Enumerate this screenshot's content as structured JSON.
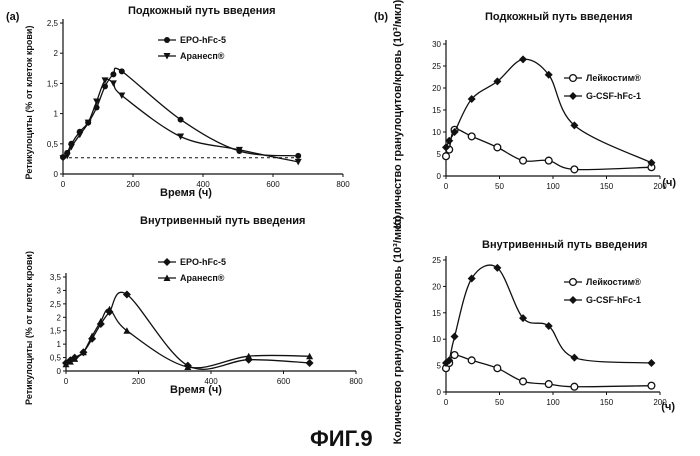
{
  "figure": {
    "caption": "ФИГ.9",
    "panel_a": "(a)",
    "panel_b": "(b)"
  },
  "chart_data": [
    {
      "type": "line",
      "title": "Подкожный путь введения",
      "xlabel": "Время (ч)",
      "ylabel": "Ретикулоциты (% от клеток крови)",
      "xlim": [
        0,
        800
      ],
      "ylim": [
        0,
        2.5
      ],
      "xticks": [
        "0",
        "200",
        "400",
        "600",
        "800"
      ],
      "yticks": [
        "0",
        "0,5",
        "1",
        "1,5",
        "2",
        "2,5"
      ],
      "baseline": 0.27,
      "series": [
        {
          "name": "EPO-hFc-5",
          "x": [
            0,
            12,
            24,
            48,
            72,
            96,
            120,
            144,
            168,
            336,
            504,
            672
          ],
          "y": [
            0.28,
            0.35,
            0.5,
            0.7,
            0.85,
            1.1,
            1.45,
            1.65,
            1.7,
            0.9,
            0.38,
            0.3
          ]
        },
        {
          "name": "Аранесп®",
          "x": [
            0,
            12,
            24,
            48,
            72,
            96,
            120,
            144,
            168,
            336,
            504,
            672
          ],
          "y": [
            0.26,
            0.3,
            0.45,
            0.65,
            0.85,
            1.2,
            1.55,
            1.5,
            1.3,
            0.62,
            0.4,
            0.2
          ]
        }
      ]
    },
    {
      "type": "line",
      "title": "Внутривенный путь введения",
      "xlabel": "Время (ч)",
      "ylabel": "Ретикулоциты (% от клеток крови)",
      "xlim": [
        0,
        800
      ],
      "ylim": [
        0,
        3.5
      ],
      "xticks": [
        "0",
        "200",
        "400",
        "600",
        "800"
      ],
      "yticks": [
        "0",
        "0,5",
        "1",
        "1,5",
        "2",
        "2,5",
        "3",
        "3,5"
      ],
      "series": [
        {
          "name": "EPO-hFc-5",
          "x": [
            0,
            12,
            24,
            48,
            72,
            96,
            120,
            168,
            336,
            504,
            672
          ],
          "y": [
            0.3,
            0.4,
            0.5,
            0.7,
            1.2,
            1.75,
            2.2,
            2.85,
            0.2,
            0.42,
            0.3
          ]
        },
        {
          "name": "Аранесп®",
          "x": [
            0,
            12,
            24,
            48,
            72,
            96,
            120,
            168,
            336,
            504,
            672
          ],
          "y": [
            0.25,
            0.35,
            0.45,
            0.7,
            1.3,
            1.85,
            2.3,
            1.5,
            0.15,
            0.55,
            0.55
          ]
        }
      ]
    },
    {
      "type": "line",
      "title": "Подкожный путь введения",
      "xlabel": "(ч)",
      "ylabel": "Количество гранулоцитов/кровь (10³/мкл)",
      "xlim": [
        0,
        200
      ],
      "ylim": [
        0,
        30
      ],
      "xticks": [
        "0",
        "50",
        "100",
        "150",
        "200"
      ],
      "yticks": [
        "0",
        "5",
        "10",
        "15",
        "20",
        "25",
        "30"
      ],
      "series": [
        {
          "name": "Лейкостим®",
          "x": [
            0,
            3,
            8,
            24,
            48,
            72,
            96,
            120,
            192
          ],
          "y": [
            4.5,
            6,
            10.5,
            9,
            6.5,
            3.5,
            3.5,
            1.5,
            2
          ]
        },
        {
          "name": "G-CSF-hFc-1",
          "x": [
            0,
            3,
            8,
            24,
            48,
            72,
            96,
            120,
            192
          ],
          "y": [
            6.5,
            8,
            10,
            17.5,
            21.5,
            26.5,
            23,
            11.5,
            3
          ]
        }
      ]
    },
    {
      "type": "line",
      "title": "Внутривенный путь введения",
      "xlabel": "(ч)",
      "ylabel": "Количество гранулоцитов/кровь (10³/мкл)",
      "xlim": [
        0,
        200
      ],
      "ylim": [
        0,
        25
      ],
      "xticks": [
        "0",
        "50",
        "100",
        "150",
        "200"
      ],
      "yticks": [
        "0",
        "5",
        "10",
        "15",
        "20",
        "25"
      ],
      "series": [
        {
          "name": "Лейкостим®",
          "x": [
            0,
            3,
            8,
            24,
            48,
            72,
            96,
            120,
            192
          ],
          "y": [
            4.5,
            5.5,
            7,
            6,
            4.5,
            2,
            1.5,
            1,
            1.2
          ]
        },
        {
          "name": "G-CSF-hFc-1",
          "x": [
            0,
            3,
            8,
            24,
            48,
            72,
            96,
            120,
            192
          ],
          "y": [
            5.5,
            6,
            10.5,
            21.5,
            23.5,
            14,
            12.5,
            6.5,
            5.5
          ]
        }
      ]
    }
  ]
}
